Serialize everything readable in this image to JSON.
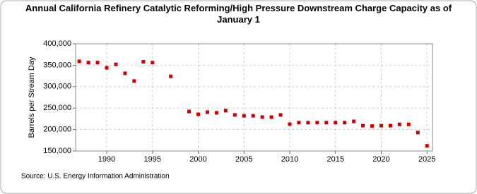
{
  "chart_data": {
    "type": "scatter",
    "title": "Annual California Refinery Catalytic Reforming/High Pressure Downstream Charge Capacity as of January 1",
    "y_label": "Barrels per Stream Day",
    "source": "Source: U.S. Energy Information Administration",
    "color": "#cc0000",
    "x": [
      1987,
      1988,
      1989,
      1990,
      1991,
      1992,
      1993,
      1994,
      1995,
      1997,
      1999,
      2000,
      2001,
      2002,
      2003,
      2004,
      2005,
      2006,
      2007,
      2008,
      2009,
      2010,
      2011,
      2012,
      2013,
      2014,
      2015,
      2016,
      2017,
      2018,
      2019,
      2020,
      2021,
      2022,
      2023,
      2024,
      2025
    ],
    "values": [
      359000,
      356000,
      356000,
      344000,
      352000,
      331000,
      313000,
      358000,
      356000,
      324000,
      242000,
      235500,
      240500,
      239000,
      244000,
      234000,
      232000,
      232000,
      229000,
      229000,
      234000,
      212500,
      216000,
      216000,
      216000,
      216000,
      216000,
      216000,
      219000,
      209000,
      208000,
      209000,
      209000,
      212000,
      212000,
      193000,
      162000
    ],
    "xlim": [
      1986.6,
      2025.6
    ],
    "xticks": [
      1990,
      1995,
      2000,
      2005,
      2010,
      2015,
      2020,
      2025
    ],
    "ylim": [
      150000,
      400000
    ],
    "yticks": [
      {
        "value": 150000,
        "label": "150,000"
      },
      {
        "value": 200000,
        "label": "200,000"
      },
      {
        "value": 250000,
        "label": "250,000"
      },
      {
        "value": 300000,
        "label": "300,000"
      },
      {
        "value": 350000,
        "label": "350,000"
      },
      {
        "value": 400000,
        "label": "400,000"
      }
    ],
    "grid": true
  }
}
